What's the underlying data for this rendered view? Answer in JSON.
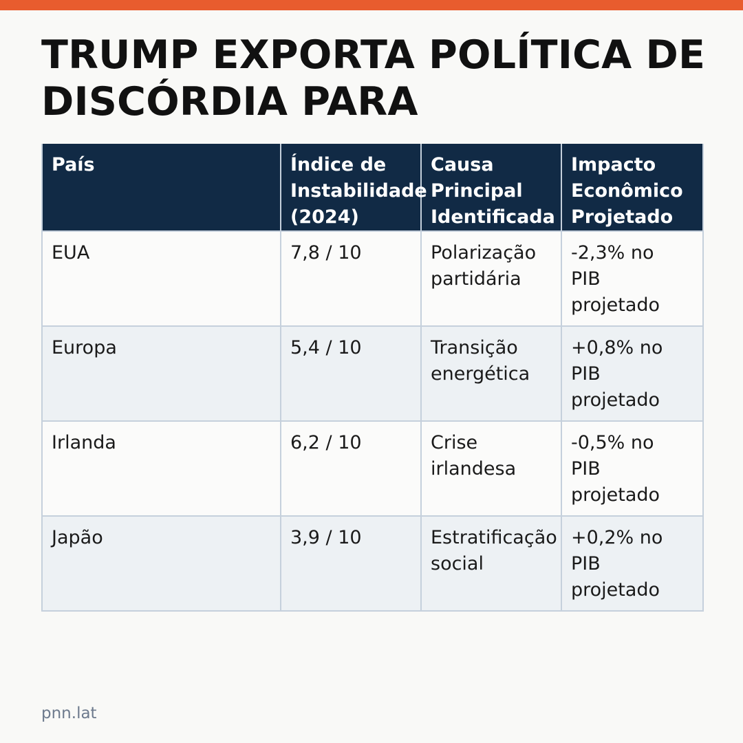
{
  "title_lines": [
    "TRUMP EXPORTA POLÍTICA DE",
    "DISCÓRDIA PARA"
  ],
  "table": {
    "headers": [
      [
        "País"
      ],
      [
        "Índice de",
        "Instabilidade",
        "(2024)"
      ],
      [
        "Causa",
        "Principal",
        "Identificada"
      ],
      [
        "Impacto",
        "Econômico",
        "Projetado"
      ]
    ],
    "rows": [
      [
        [
          "EUA"
        ],
        [
          "7,8 / 10"
        ],
        [
          "Polarização",
          "partidária"
        ],
        [
          "-2,3% no",
          "PIB",
          "projetado"
        ]
      ],
      [
        [
          "Europa"
        ],
        [
          "5,4 / 10"
        ],
        [
          "Transição",
          "energética"
        ],
        [
          "+0,8% no",
          "PIB",
          "projetado"
        ]
      ],
      [
        [
          "Irlanda"
        ],
        [
          "6,2 / 10"
        ],
        [
          "Crise",
          "irlandesa"
        ],
        [
          "-0,5% no",
          "PIB",
          "projetado"
        ]
      ],
      [
        [
          "Japão"
        ],
        [
          "3,9 / 10"
        ],
        [
          "Estratificação",
          "social"
        ],
        [
          "+0,2% no",
          "PIB",
          "projetado"
        ]
      ]
    ]
  },
  "footer": "pnn.lat",
  "colors": {
    "accent": "#e85c2e",
    "header_bg": "#112a45",
    "border": "#c5d0dc",
    "alt_row": "#edf1f4"
  }
}
